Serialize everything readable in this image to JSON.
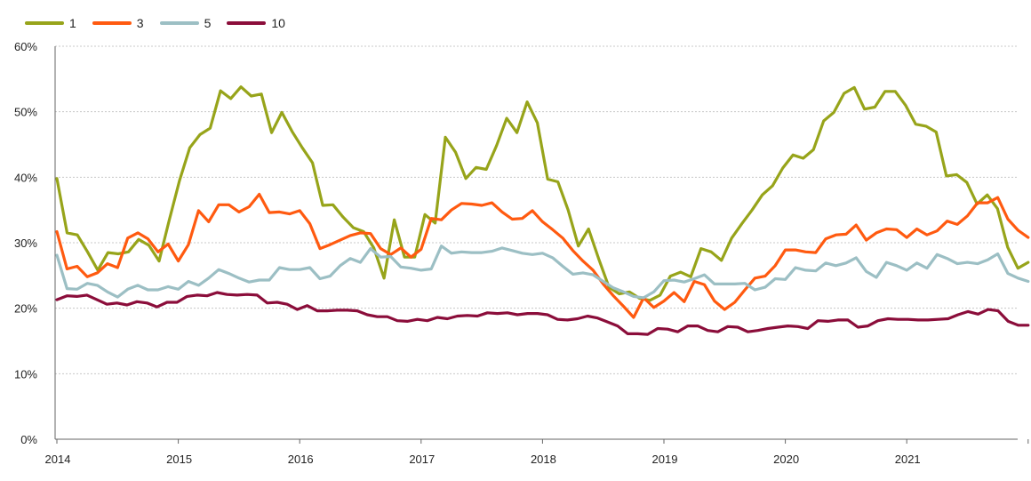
{
  "chart_data": {
    "type": "line",
    "title": "",
    "xlabel": "",
    "ylabel": "",
    "ylim": [
      0,
      60
    ],
    "yticks": [
      "0%",
      "10%",
      "20%",
      "30%",
      "40%",
      "50%",
      "60%"
    ],
    "xticks": [
      "2014",
      "2015",
      "2016",
      "2017",
      "2018",
      "2019",
      "2020",
      "2021"
    ],
    "x_start_year": 2014,
    "x_end_year": 2022,
    "grid": true,
    "legend_position": "top-left",
    "series": [
      {
        "name": "1",
        "color": "#97A41A",
        "values": [
          39.8,
          31.5,
          31.2,
          28.6,
          25.8,
          28.5,
          28.3,
          28.6,
          30.5,
          29.6,
          27.2,
          33.5,
          39.5,
          44.5,
          46.5,
          47.5,
          53.2,
          52.0,
          53.8,
          52.4,
          52.7,
          46.8,
          49.9,
          47.0,
          44.5,
          42.2,
          35.7,
          35.8,
          33.9,
          32.3,
          31.7,
          29.2,
          24.6,
          33.5,
          27.8,
          27.8,
          34.3,
          33.0,
          46.1,
          43.8,
          39.8,
          41.5,
          41.2,
          44.8,
          49.0,
          46.8,
          51.5,
          48.3,
          39.7,
          39.3,
          35.0,
          29.5,
          32.1,
          27.5,
          23.2,
          22.2,
          22.5,
          21.5,
          21.2,
          22.0,
          24.9,
          25.5,
          24.8,
          29.1,
          28.6,
          27.3,
          30.7,
          32.9,
          35.0,
          37.3,
          38.7,
          41.4,
          43.4,
          42.9,
          44.2,
          48.6,
          49.9,
          52.8,
          53.7,
          50.4,
          50.7,
          53.1,
          53.1,
          51.0,
          48.1,
          47.8,
          46.9,
          40.2,
          40.4,
          39.2,
          35.9,
          37.3,
          35.2,
          29.3,
          26.1,
          27.0
        ]
      },
      {
        "name": "3",
        "color": "#FF5A10",
        "values": [
          31.7,
          26.0,
          26.4,
          24.8,
          25.4,
          26.8,
          26.2,
          30.7,
          31.5,
          30.6,
          28.6,
          29.8,
          27.2,
          29.7,
          34.9,
          33.2,
          35.8,
          35.8,
          34.7,
          35.5,
          37.4,
          34.6,
          34.7,
          34.4,
          34.9,
          32.9,
          29.1,
          29.7,
          30.4,
          31.1,
          31.5,
          31.4,
          29.1,
          28.2,
          29.2,
          27.8,
          29.0,
          33.7,
          33.5,
          35.0,
          36.0,
          35.9,
          35.7,
          36.1,
          34.7,
          33.6,
          33.7,
          34.9,
          33.2,
          32.0,
          30.7,
          28.8,
          27.2,
          25.8,
          23.7,
          21.9,
          20.3,
          18.6,
          21.6,
          20.1,
          21.1,
          22.4,
          21.0,
          24.1,
          23.6,
          21.1,
          19.8,
          20.9,
          22.8,
          24.6,
          24.9,
          26.5,
          28.9,
          28.9,
          28.6,
          28.5,
          30.6,
          31.2,
          31.3,
          32.7,
          30.4,
          31.5,
          32.1,
          32.0,
          30.8,
          32.1,
          31.2,
          31.8,
          33.3,
          32.8,
          34.1,
          36.1,
          36.1,
          36.9,
          33.6,
          31.9,
          30.8
        ]
      },
      {
        "name": "5",
        "color": "#9CBFC4",
        "values": [
          28.1,
          23.0,
          22.9,
          23.8,
          23.5,
          22.5,
          21.7,
          22.9,
          23.5,
          22.8,
          22.8,
          23.3,
          22.9,
          24.1,
          23.5,
          24.6,
          25.9,
          25.3,
          24.6,
          24.0,
          24.3,
          24.3,
          26.2,
          25.9,
          25.9,
          26.2,
          24.5,
          24.9,
          26.5,
          27.6,
          27.0,
          29.1,
          27.8,
          27.9,
          26.3,
          26.1,
          25.8,
          26.0,
          29.5,
          28.4,
          28.6,
          28.5,
          28.5,
          28.7,
          29.2,
          28.8,
          28.4,
          28.2,
          28.4,
          27.7,
          26.4,
          25.2,
          25.4,
          25.1,
          24.1,
          23.1,
          22.5,
          21.8,
          21.6,
          22.5,
          24.2,
          24.3,
          24.0,
          24.5,
          25.1,
          23.7,
          23.7,
          23.7,
          23.8,
          22.8,
          23.2,
          24.5,
          24.4,
          26.2,
          25.8,
          25.7,
          26.9,
          26.5,
          26.9,
          27.7,
          25.6,
          24.7,
          27.0,
          26.5,
          25.8,
          26.9,
          26.1,
          28.2,
          27.6,
          26.8,
          27.0,
          26.8,
          27.4,
          28.3,
          25.3,
          24.6,
          24.1
        ]
      },
      {
        "name": "10",
        "color": "#8B0D3A",
        "values": [
          21.3,
          21.9,
          21.8,
          22.0,
          21.3,
          20.6,
          20.8,
          20.5,
          21.0,
          20.8,
          20.2,
          20.9,
          20.9,
          21.8,
          22.0,
          21.9,
          22.4,
          22.1,
          22.0,
          22.1,
          22.0,
          20.8,
          20.9,
          20.6,
          19.8,
          20.4,
          19.6,
          19.6,
          19.7,
          19.7,
          19.6,
          19.0,
          18.7,
          18.7,
          18.1,
          18.0,
          18.3,
          18.1,
          18.6,
          18.4,
          18.8,
          18.9,
          18.8,
          19.3,
          19.2,
          19.3,
          19.0,
          19.2,
          19.2,
          19.0,
          18.3,
          18.2,
          18.4,
          18.8,
          18.5,
          17.9,
          17.3,
          16.1,
          16.1,
          16.0,
          16.9,
          16.8,
          16.4,
          17.3,
          17.3,
          16.6,
          16.4,
          17.2,
          17.1,
          16.4,
          16.6,
          16.9,
          17.1,
          17.3,
          17.2,
          16.9,
          18.1,
          18.0,
          18.2,
          18.2,
          17.1,
          17.3,
          18.1,
          18.4,
          18.3,
          18.3,
          18.2,
          18.2,
          18.3,
          18.4,
          19.0,
          19.5,
          19.1,
          19.8,
          19.6,
          18.0,
          17.4,
          17.4
        ]
      }
    ]
  }
}
